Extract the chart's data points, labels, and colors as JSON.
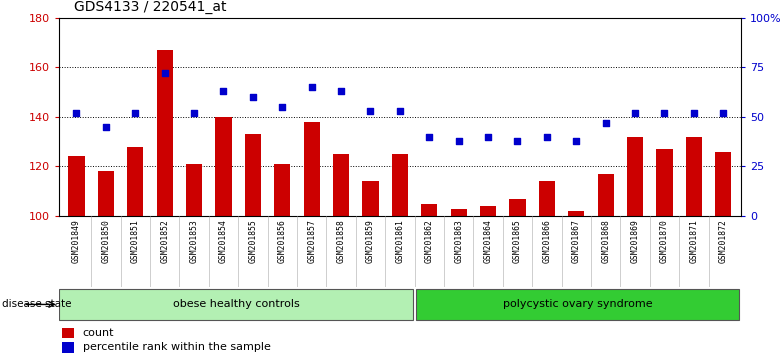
{
  "title": "GDS4133 / 220541_at",
  "samples": [
    "GSM201849",
    "GSM201850",
    "GSM201851",
    "GSM201852",
    "GSM201853",
    "GSM201854",
    "GSM201855",
    "GSM201856",
    "GSM201857",
    "GSM201858",
    "GSM201859",
    "GSM201861",
    "GSM201862",
    "GSM201863",
    "GSM201864",
    "GSM201865",
    "GSM201866",
    "GSM201867",
    "GSM201868",
    "GSM201869",
    "GSM201870",
    "GSM201871",
    "GSM201872"
  ],
  "counts": [
    124,
    118,
    128,
    167,
    121,
    140,
    133,
    121,
    138,
    125,
    114,
    125,
    105,
    103,
    104,
    107,
    114,
    102,
    117,
    132,
    127,
    132,
    126
  ],
  "percentiles": [
    52,
    45,
    52,
    72,
    52,
    63,
    60,
    55,
    65,
    63,
    53,
    53,
    40,
    38,
    40,
    38,
    40,
    38,
    47,
    52,
    52,
    52,
    52
  ],
  "ylim_left": [
    100,
    180
  ],
  "ylim_right": [
    0,
    100
  ],
  "yticks_left": [
    100,
    120,
    140,
    160,
    180
  ],
  "ytick_right_vals": [
    0,
    25,
    50,
    75,
    100
  ],
  "ytick_right_labels": [
    "0",
    "25",
    "50",
    "75",
    "100%"
  ],
  "bar_color": "#cc0000",
  "dot_color": "#0000cc",
  "bar_bottom": 100,
  "group1_label": "obese healthy controls",
  "group2_label": "polycystic ovary syndrome",
  "group1_count": 12,
  "group2_count": 11,
  "disease_state_label": "disease state",
  "legend_bar_label": "count",
  "legend_dot_label": "percentile rank within the sample",
  "bg_color": "#ffffff",
  "plot_bg_color": "#ffffff",
  "tick_label_bg": "#d0d0d0",
  "group1_color": "#b3f0b3",
  "group2_color": "#33cc33",
  "grid_color": "#000000",
  "title_fontsize": 10,
  "axis_fontsize": 8,
  "legend_fontsize": 8
}
